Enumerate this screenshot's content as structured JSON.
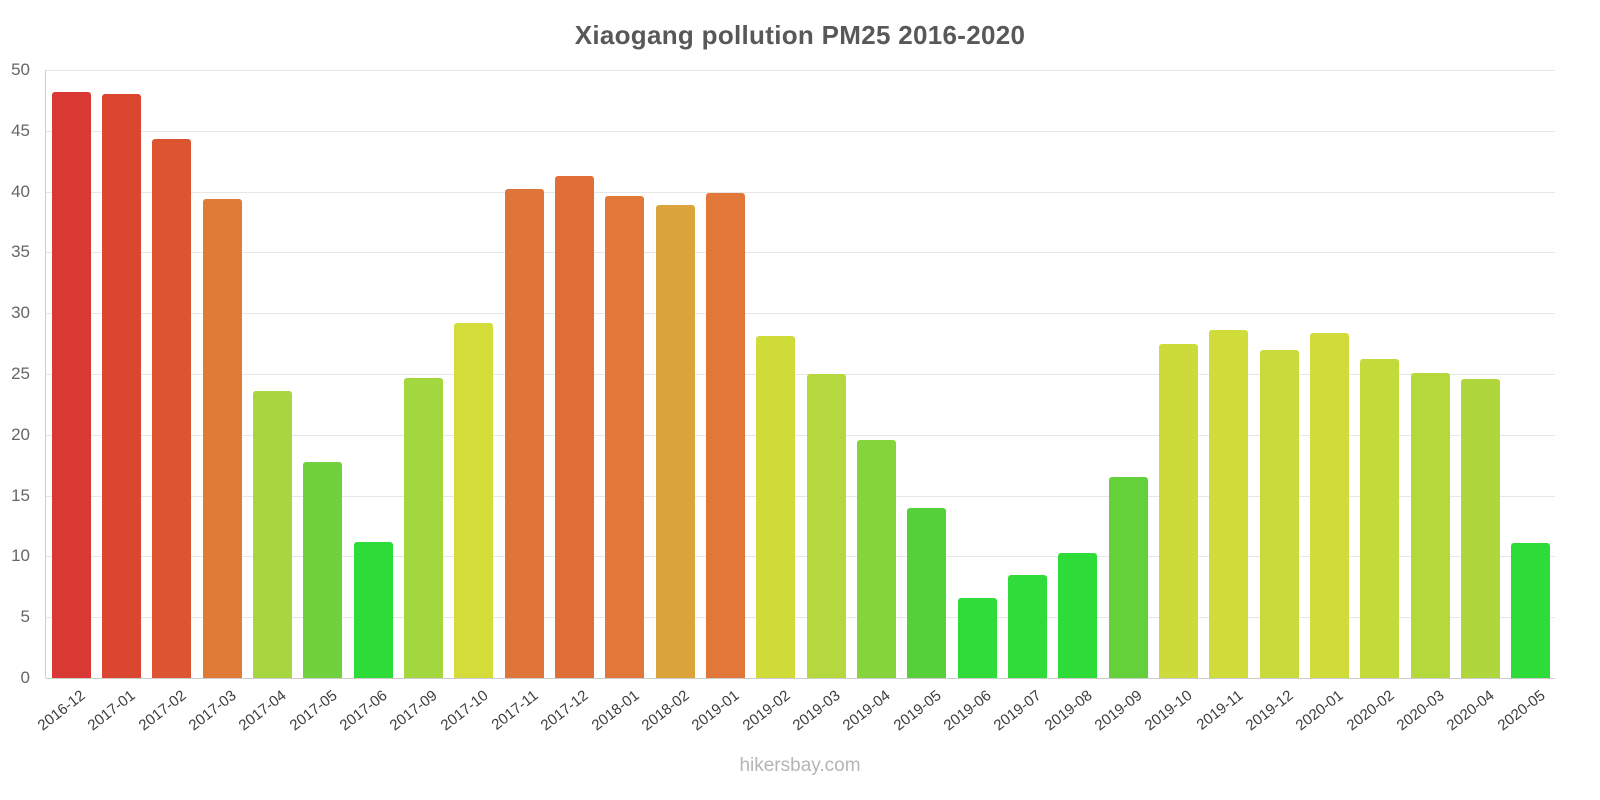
{
  "chart_data": {
    "type": "bar",
    "title": "Xiaogang pollution PM25 2016-2020",
    "footer": "hikersbay.com",
    "xlabel": "",
    "ylabel": "",
    "ylim": [
      0,
      50
    ],
    "yticks": [
      0,
      5,
      10,
      15,
      20,
      25,
      30,
      35,
      40,
      45,
      50
    ],
    "grid": true,
    "legend_position": "none",
    "categories": [
      "2016-12",
      "2017-01",
      "2017-02",
      "2017-03",
      "2017-04",
      "2017-05",
      "2017-06",
      "2017-09",
      "2017-10",
      "2017-11",
      "2017-12",
      "2018-01",
      "2018-02",
      "2019-01",
      "2019-02",
      "2019-03",
      "2019-04",
      "2019-05",
      "2019-06",
      "2019-07",
      "2019-08",
      "2019-09",
      "2019-10",
      "2019-11",
      "2019-12",
      "2020-01",
      "2020-02",
      "2020-03",
      "2020-04",
      "2020-05"
    ],
    "values": [
      48.2,
      48.0,
      44.3,
      39.4,
      23.6,
      17.8,
      11.2,
      24.7,
      29.2,
      40.2,
      41.3,
      39.6,
      38.9,
      39.9,
      28.1,
      25.0,
      19.6,
      14.0,
      6.6,
      8.5,
      10.3,
      16.5,
      27.5,
      28.6,
      27.0,
      28.4,
      26.2,
      25.1,
      24.6,
      11.1
    ],
    "bar_colors": [
      "#da3832",
      "#db4631",
      "#dd5430",
      "#e07a37",
      "#a8d63e",
      "#70d13c",
      "#2edc39",
      "#a4d63e",
      "#d3dc39",
      "#e0753a",
      "#e06e38",
      "#e17839",
      "#dba43b",
      "#e17739",
      "#cedb39",
      "#b4d83d",
      "#85d43c",
      "#55cf3a",
      "#2fdc39",
      "#2fdc39",
      "#2edc39",
      "#64d13b",
      "#ccdb3a",
      "#d0dc39",
      "#c9db3a",
      "#cfdc39",
      "#c3da3b",
      "#b5d83d",
      "#afd73d",
      "#2edc39"
    ]
  }
}
